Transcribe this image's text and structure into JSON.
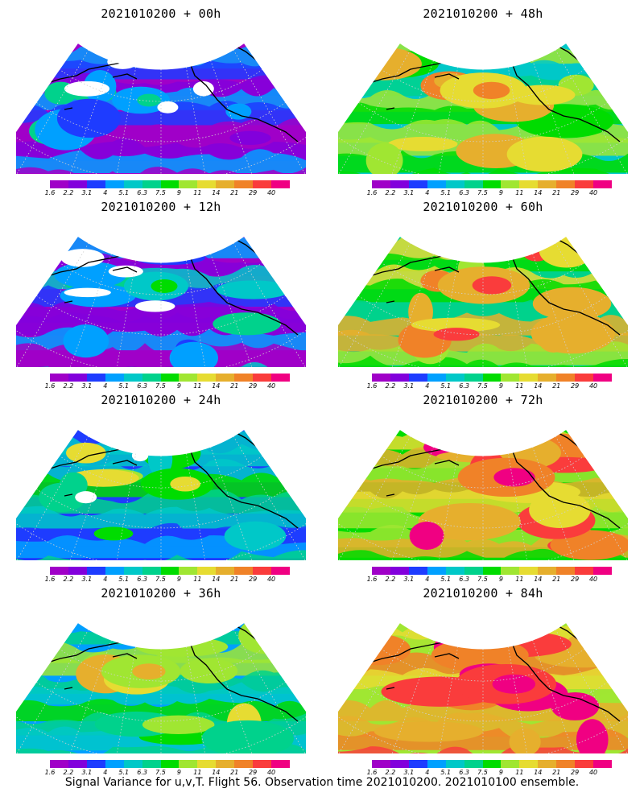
{
  "panels": [
    {
      "title": "2021010200 + 00h",
      "level": 0.15
    },
    {
      "title": "2021010200 + 48h",
      "level": 0.6
    },
    {
      "title": "2021010200 + 12h",
      "level": 0.25
    },
    {
      "title": "2021010200 + 60h",
      "level": 0.68
    },
    {
      "title": "2021010200 + 24h",
      "level": 0.38
    },
    {
      "title": "2021010200 + 72h",
      "level": 0.76
    },
    {
      "title": "2021010200 + 36h",
      "level": 0.48
    },
    {
      "title": "2021010200 + 84h",
      "level": 0.82
    }
  ],
  "colorbar": {
    "labels": [
      "1.6",
      "2.2",
      "3.1",
      "4",
      "5.1",
      "6.3",
      "7.5",
      "9",
      "11",
      "14",
      "21",
      "29",
      "40"
    ],
    "colors": [
      "#a000c8",
      "#8200dc",
      "#1e3cff",
      "#00a0ff",
      "#00c8c8",
      "#00d28c",
      "#00dc00",
      "#a0e632",
      "#e6dc32",
      "#e6af2d",
      "#f08228",
      "#fa3c3c",
      "#f00082"
    ]
  },
  "caption": "Signal Variance for u,v,T. Flight 56. Observation time 2021010200. 2021010100 ensemble."
}
